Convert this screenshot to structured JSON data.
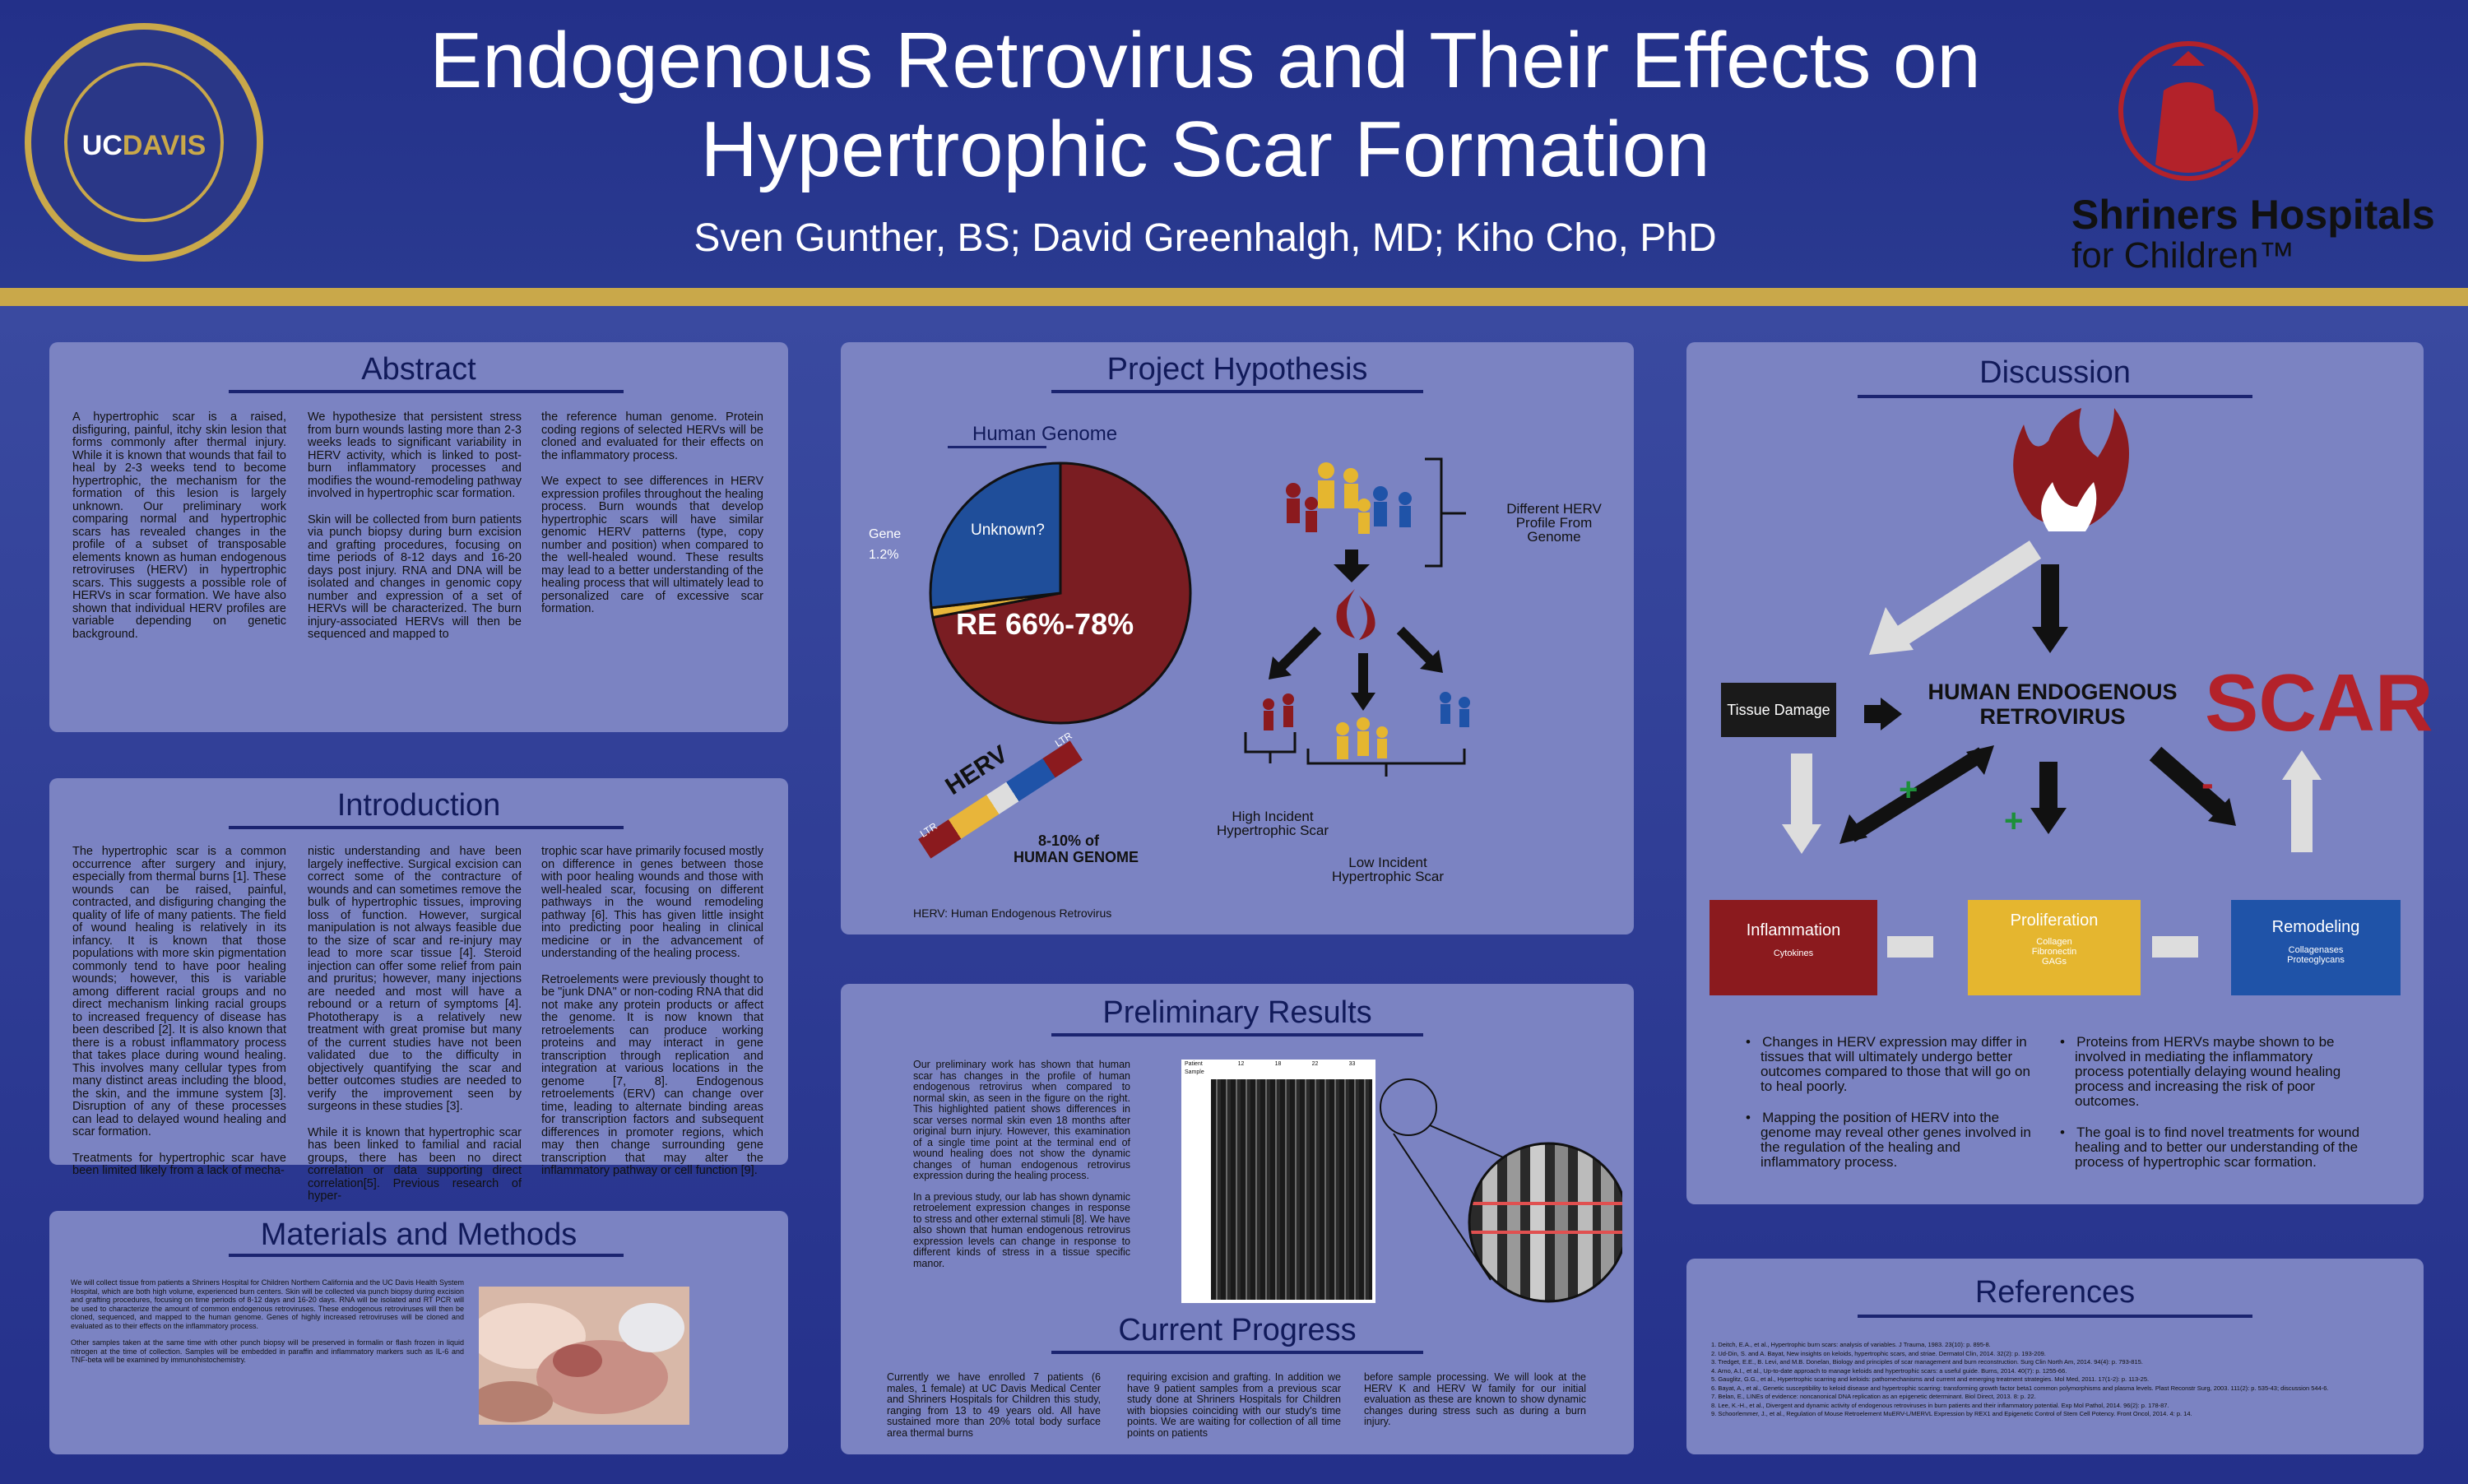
{
  "header": {
    "title_line1": "Endogenous Retrovirus and Their Effects on",
    "title_line2": "Hypertrophic Scar Formation",
    "authors": "Sven Gunther, BS; David Greenhalgh, MD; Kiho Cho, PhD"
  },
  "logos": {
    "ucdavis_uc": "UC",
    "ucdavis_davis": "DAVIS",
    "shriners_name": "Shriners Hospitals",
    "shriners_sub": "for Children™"
  },
  "abstract": {
    "title": "Abstract",
    "col1": "A hypertrophic scar is a raised, disfiguring, painful, itchy skin lesion that forms commonly after thermal injury. While it is known that wounds that fail to heal by 2-3 weeks tend to become hypertrophic, the mechanism for the formation of this lesion is largely unknown. Our preliminary work comparing normal and hypertrophic scars has revealed changes in the profile of a subset of transposable elements known as human endogenous retroviruses (HERV) in hypertrophic scars. This suggests a possible role of HERVs in scar formation. We have also shown that individual HERV profiles are variable depending on genetic background.",
    "col2a": "We hypothesize that persistent stress from burn wounds lasting more than 2-3 weeks leads to significant variability in HERV activity, which is linked to post-burn inflammatory processes and modifies the wound-remodeling pathway involved in hypertrophic scar formation.",
    "col2b": "Skin will be collected from burn patients via punch biopsy during burn excision and grafting procedures, focusing on time periods of 8-12 days and 16-20 days post injury. RNA and DNA will be isolated and changes in genomic copy number and expression of a set of HERVs will be characterized. The burn injury-associated HERVs will then be sequenced and mapped to",
    "col3a": "the reference human genome. Protein coding regions of selected HERVs will be cloned and evaluated for their effects on the inflammatory process.",
    "col3b": "We expect to see differences in HERV expression profiles throughout the healing process. Burn wounds that develop hypertrophic scars will have similar genomic HERV patterns (type, copy number and position) when compared to the well-healed wound. These results may lead to a better understanding of the healing process that will ultimately lead to personalized care of excessive scar formation."
  },
  "introduction": {
    "title": "Introduction",
    "col1a": "The hypertrophic scar is a common occurrence after surgery and injury, especially from thermal burns [1]. These wounds can be raised, painful, contracted, and disfiguring changing the quality of life of many patients. The field of wound healing is relatively in its infancy. It is known that those populations with more skin pigmentation commonly tend to have poor healing wounds; however, this is variable among different racial groups and no direct mechanism linking racial groups to increased frequency of disease has been described [2]. It is also known that there is a robust inflammatory process that takes place during wound healing. This involves many cellular types from many distinct areas including the blood, the skin, and the immune system [3]. Disruption of any of these processes can lead to delayed wound healing and scar formation.",
    "col1b": "Treatments for hypertrophic scar have been limited likely from a lack of mecha-",
    "col2a": "nistic understanding and have been largely ineffective. Surgical excision can correct some of the contracture of wounds and can sometimes remove the bulk of hypertrophic tissues, improving loss of function. However, surgical manipulation is not always feasible due to the size of scar and re-injury may lead to more scar tissue [4]. Steroid injection can offer some relief from pain and pruritus; however, many injections are needed and most will have a rebound or a return of symptoms [4]. Phototherapy is a relatively new treatment with great promise but many of the current studies have not been validated due to the difficulty in objectively quantifying the scar and better outcomes studies are needed to verify the improvement seen by surgeons in these studies [3].",
    "col2b": "While it is known that hypertrophic scar has been linked to familial and racial groups, there has been no direct correlation or data supporting direct correlation[5]. Previous research of hyper-",
    "col3a": "trophic scar have primarily focused mostly on difference in genes between those with poor healing wounds and those with well-healed scar, focusing on different pathways in the wound remodeling pathway [6]. This has given little insight into predicting poor healing in clinical medicine or in the advancement of understanding of the healing process.",
    "col3b": "Retroelements were previously thought to be \"junk DNA\" or non-coding RNA that did not make any protein products or affect the genome. It is now known that retroelements can produce working proteins and may interact in gene transcription through replication and integration at various locations in the genome [7, 8]. Endogenous retroelements (ERV) can change over time, leading to alternate binding areas for transcription factors and subsequent differences in promoter regions, which may then change surrounding gene transcription that may alter the inflammatory pathway or cell function [9]."
  },
  "methods": {
    "title": "Materials and Methods",
    "p1": "We will collect tissue from patients a Shriners Hospital for Children Northern California and the UC Davis Health System Hospital, which are both high volume, experienced burn centers. Skin will be collected via punch biopsy during excision and grafting procedures, focusing on time periods of 8-12 days and 16-20 days. RNA will be isolated and RT PCR will be used to characterize the amount of common endogenous retroviruses. These endogenous retroviruses will then be cloned, sequenced, and mapped to the human genome. Genes of highly increased retroviruses will be cloned and evaluated as to their effects on the inflammatory process.",
    "p2": "Other samples taken at the same time with other punch biopsy will be preserved in formalin or flash frozen in liquid nitrogen at the time of collection. Samples will be embedded in paraffin and inflammatory markers such as IL-6 and TNF-beta will be examined by immunohistochemistry."
  },
  "hypothesis": {
    "title": "Project Hypothesis",
    "pie_title": "Human Genome",
    "slice_unknown": "Unknown?",
    "slice_gene_label": "Gene",
    "slice_gene_value": "1.2%",
    "slice_re": "RE 66%-78%",
    "herv_word": "HERV",
    "ltr1": "LTR",
    "ltr2": "LTR",
    "herv_pct_line1": "8-10% of",
    "herv_pct_line2": "HUMAN GENOME",
    "herv_caption": "HERV: Human Endogenous Retrovirus",
    "profile_label": "Different HERV Profile From Genome",
    "high_label": "High Incident Hypertrophic Scar",
    "low_label": "Low Incident Hypertrophic Scar",
    "chart_data": {
      "type": "pie",
      "title": "Human Genome",
      "slices": [
        {
          "label": "RE 66%-78%",
          "value": 72,
          "color": "#7a1d22"
        },
        {
          "label": "Unknown?",
          "value": 26.8,
          "color": "#1f4e9a"
        },
        {
          "label": "Gene 1.2%",
          "value": 1.2,
          "color": "#e8b53a"
        }
      ]
    }
  },
  "results": {
    "title": "Preliminary Results",
    "p1": "Our preliminary work has shown that human scar has changes in the profile of human endogenous retrovirus when compared to normal skin, as seen in the figure on the right. This highlighted patient shows differences in scar verses normal skin even 18 months after original burn injury. However, this examination of a single time point at the terminal end of wound healing does not show the dynamic changes of human endogenous retrovirus expression during the healing process.",
    "p2": "In a previous study, our lab has shown dynamic retroelement expression changes in response to stress and other external stimuli [8]. We have also shown that human endogenous retrovirus expression levels can change in response to different kinds of stress in a tissue specific manor.",
    "gel_patient": "Patient",
    "gel_sample": "Sample",
    "gel_lane_labels": [
      "12",
      "18",
      "22",
      "33"
    ]
  },
  "progress": {
    "title": "Current Progress",
    "col1": "Currently we have enrolled 7 patients (6 males, 1 female) at UC Davis Medical Center and Shriners Hospitals for Children this study, ranging from 13 to 49 years old. All have sustained more than 20% total body surface area thermal burns",
    "col2": "requiring excision and grafting. In addition we have 9 patient samples from a previous scar study done at Shriners Hospitals for Children with biopsies coinciding with our study's time points. We are waiting for collection of all time points on patients",
    "col3": "before sample processing. We will look at the HERV K and HERV W family for our initial evaluation as these are known to show dynamic changes during stress such as during a burn injury."
  },
  "discussion": {
    "title": "Discussion",
    "tissue_damage": "Tissue Damage",
    "herv_line1": "HUMAN ENDOGENOUS",
    "herv_line2": "RETROVIRUS",
    "scar": "SCAR",
    "plus": "+",
    "minus": "-",
    "inflammation": "Inflammation",
    "inflammation_sub": "Cytokines",
    "proliferation": "Proliferation",
    "proliferation_sub1": "Collagen",
    "proliferation_sub2": "Fibronectin",
    "proliferation_sub3": "GAGs",
    "remodeling": "Remodeling",
    "remodeling_sub1": "Collagenases",
    "remodeling_sub2": "Proteoglycans",
    "bullets_left": [
      "Changes in HERV expression may differ in tissues that will ultimately undergo better outcomes compared to those that will go on to heal poorly.",
      "Mapping the position of HERV into the genome may reveal other genes involved in the regulation of the healing and inflammatory process."
    ],
    "bullets_right": [
      "Proteins from HERVs maybe shown to be involved in mediating the inflammatory process potentially delaying wound healing process and increasing the risk of poor outcomes.",
      "The goal is to find novel treatments for wound healing and to better our understanding of the process of hypertrophic scar formation."
    ]
  },
  "references": {
    "title": "References",
    "items": [
      "1. Deitch, E.A., et al., Hypertrophic burn scars: analysis of variables. J Trauma, 1983. 23(10): p. 895-8.",
      "2. Ud-Din, S. and A. Bayat, New insights on keloids, hypertrophic scars, and striae. Dermatol Clin, 2014. 32(2): p. 193-209.",
      "3. Tredget, E.E., B. Levi, and M.B. Donelan, Biology and principles of scar management and burn reconstruction. Surg Clin North Am, 2014. 94(4): p. 793-815.",
      "4. Arno, A.I., et al., Up-to-date approach to manage keloids and hypertrophic scars: a useful guide. Burns, 2014. 40(7): p. 1255-66.",
      "5. Gauglitz, G.G., et al., Hypertrophic scarring and keloids: pathomechanisms and current and emerging treatment strategies. Mol Med, 2011. 17(1-2): p. 113-25.",
      "6. Bayat, A., et al., Genetic susceptibility to keloid disease and hypertrophic scarring: transforming growth factor beta1 common polymorphisms and plasma levels. Plast Reconstr Surg, 2003. 111(2): p. 535-43; discussion 544-6.",
      "7. Belan, E., LINEs of evidence: noncanonical DNA replication as an epigenetic determinant. Biol Direct, 2013. 8: p. 22.",
      "8. Lee, K.-H., et al., Divergent and dynamic activity of endogenous retroviruses in burn patients and their inflammatory potential. Exp Mol Pathol, 2014. 96(2): p. 178-87.",
      "9. Schoorlemmer, J., et al., Regulation of Mouse Retroelement MuERV-L/MERVL Expression by REX1 and Epigenetic Control of Stem Cell Potency. Front Oncol, 2014. 4: p. 14."
    ]
  },
  "colors": {
    "banner": "#233089",
    "gold": "#c9a84a",
    "panel": "#7b83c2",
    "heading": "#111a5a",
    "inflammation": "#8b1a1e",
    "proliferation": "#e5b62f",
    "remodeling": "#1f53a8"
  }
}
